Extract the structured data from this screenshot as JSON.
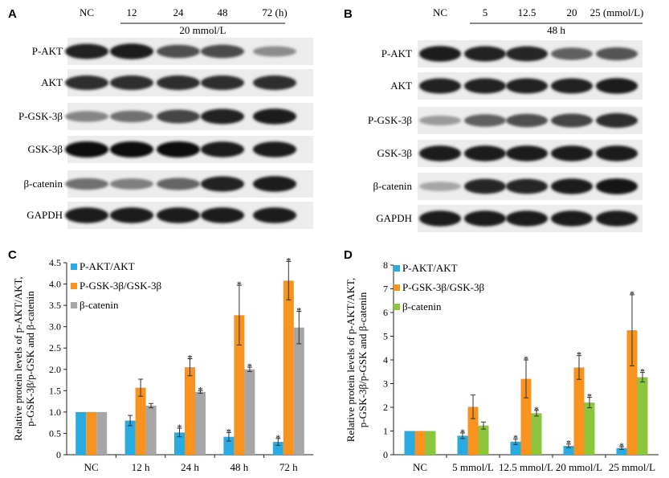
{
  "panels": {
    "A": {
      "letter": "A",
      "lanes": [
        "NC",
        "12",
        "24",
        "48",
        "72 (h)"
      ],
      "group_label": "20 mmol/L",
      "rows": [
        {
          "name": "P-AKT",
          "intensity": [
            0.92,
            0.95,
            0.7,
            0.72,
            0.42
          ]
        },
        {
          "name": "AKT",
          "intensity": [
            0.85,
            0.85,
            0.85,
            0.85,
            0.85
          ]
        },
        {
          "name": "P-GSK-3β",
          "intensity": [
            0.45,
            0.55,
            0.75,
            0.92,
            0.95
          ]
        },
        {
          "name": "GSK-3β",
          "intensity": [
            1.0,
            1.0,
            1.0,
            0.95,
            0.95
          ]
        },
        {
          "name": "β-catenin",
          "intensity": [
            0.55,
            0.48,
            0.6,
            0.92,
            0.95
          ]
        },
        {
          "name": "GAPDH",
          "intensity": [
            0.95,
            0.95,
            0.95,
            0.95,
            0.95
          ]
        }
      ]
    },
    "B": {
      "letter": "B",
      "lanes": [
        "NC",
        "5",
        "12.5",
        "20",
        "25 (mmol/L)"
      ],
      "group_label": "48 h",
      "rows": [
        {
          "name": "P-AKT",
          "intensity": [
            0.95,
            0.92,
            0.9,
            0.62,
            0.68
          ]
        },
        {
          "name": "AKT",
          "intensity": [
            0.92,
            0.92,
            0.92,
            0.92,
            0.95
          ]
        },
        {
          "name": "P-GSK-3β",
          "intensity": [
            0.35,
            0.62,
            0.7,
            0.75,
            0.85
          ]
        },
        {
          "name": "GSK-3β",
          "intensity": [
            0.95,
            0.95,
            0.95,
            0.95,
            0.95
          ]
        },
        {
          "name": "β-catenin",
          "intensity": [
            0.3,
            0.9,
            0.9,
            0.95,
            0.98
          ]
        },
        {
          "name": "GAPDH",
          "intensity": [
            0.95,
            0.95,
            0.95,
            0.95,
            0.95
          ]
        }
      ]
    },
    "C": {
      "letter": "C"
    },
    "D": {
      "letter": "D"
    }
  },
  "chart_data": [
    {
      "panel": "C",
      "type": "bar",
      "ylabel_lines": [
        "Relative protein levels of p-AKT/AKT,",
        "p-GSK-3β/p-GSK and β-catenin"
      ],
      "ylim": [
        0,
        4.5
      ],
      "yticks": [
        "0",
        "0.5",
        "1.0",
        "1.5",
        "2.0",
        "2.5",
        "3.0",
        "3.5",
        "4.0",
        "4.5"
      ],
      "ytick_values": [
        0,
        0.5,
        1.0,
        1.5,
        2.0,
        2.5,
        3.0,
        3.5,
        4.0,
        4.5
      ],
      "categories": [
        "NC",
        "12 h",
        "24 h",
        "48 h",
        "72 h"
      ],
      "legend_position": "top-left",
      "series": [
        {
          "name": "P-AKT/AKT",
          "color": "#29abe2",
          "values": [
            1.0,
            0.8,
            0.52,
            0.42,
            0.3
          ],
          "errors": [
            0.0,
            0.12,
            0.1,
            0.1,
            0.08
          ],
          "sig": [
            false,
            false,
            true,
            true,
            true
          ]
        },
        {
          "name": "P-GSK-3β/GSK-3β",
          "color": "#f7931e",
          "values": [
            1.0,
            1.57,
            2.05,
            3.27,
            4.08
          ],
          "errors": [
            0.0,
            0.2,
            0.2,
            0.7,
            0.45
          ],
          "sig": [
            false,
            false,
            true,
            true,
            true
          ]
        },
        {
          "name": "β-catenin",
          "color": "#a6a6a6",
          "values": [
            1.0,
            1.15,
            1.47,
            2.0,
            2.98
          ],
          "errors": [
            0.0,
            0.05,
            0.03,
            0.05,
            0.38
          ],
          "sig": [
            false,
            false,
            true,
            true,
            true
          ]
        }
      ],
      "sig_marker": "*"
    },
    {
      "panel": "D",
      "type": "bar",
      "ylabel_lines": [
        "Relative protein levels of p-AKT/AKT,",
        "p-GSK-3β/p-GSK and β-catenin"
      ],
      "ylim": [
        0,
        8
      ],
      "yticks": [
        "0",
        "1",
        "2",
        "3",
        "4",
        "5",
        "6",
        "7",
        "8"
      ],
      "ytick_values": [
        0,
        1,
        2,
        3,
        4,
        5,
        6,
        7,
        8
      ],
      "categories": [
        "NC",
        "5 mmol/L",
        "12.5 mmol/L",
        "20 mmol/L",
        "25 mmol/L"
      ],
      "legend_position": "top-left",
      "series": [
        {
          "name": "P-AKT/AKT",
          "color": "#29abe2",
          "values": [
            1.0,
            0.8,
            0.55,
            0.37,
            0.28
          ],
          "errors": [
            0.0,
            0.12,
            0.12,
            0.08,
            0.06
          ],
          "sig": [
            false,
            true,
            true,
            true,
            true
          ]
        },
        {
          "name": "P-GSK-3β/GSK-3β",
          "color": "#f7931e",
          "values": [
            1.0,
            2.02,
            3.2,
            3.68,
            5.25
          ],
          "errors": [
            0.0,
            0.5,
            0.8,
            0.5,
            1.5
          ],
          "sig": [
            false,
            false,
            true,
            true,
            true
          ]
        },
        {
          "name": "β-catenin",
          "color": "#8cc63f",
          "values": [
            1.0,
            1.23,
            1.75,
            2.2,
            3.27
          ],
          "errors": [
            0.0,
            0.15,
            0.12,
            0.22,
            0.2
          ],
          "sig": [
            false,
            false,
            true,
            true,
            true
          ]
        }
      ],
      "sig_marker": "*"
    }
  ]
}
